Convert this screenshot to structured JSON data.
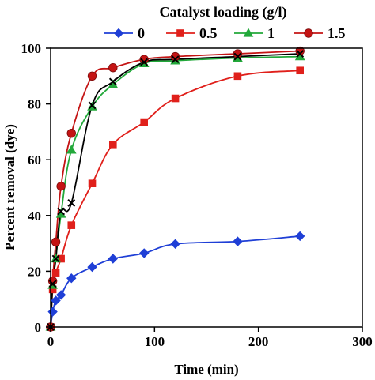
{
  "chart_data": {
    "type": "line",
    "xlabel": "Time (min)",
    "ylabel": "Percent removal (dye)",
    "xlim": [
      0,
      300
    ],
    "ylim": [
      0,
      100
    ],
    "xticks": [
      0,
      100,
      200,
      300
    ],
    "yticks": [
      0,
      20,
      40,
      60,
      80,
      100
    ],
    "grid": false,
    "legend": {
      "title": "Catalyst loading (g/l)",
      "placement": "top",
      "entries": [
        "0",
        "0.5",
        "1",
        "1.5"
      ]
    },
    "series": [
      {
        "name": "0",
        "marker": "diamond",
        "color": "#1f3fd6",
        "x": [
          0,
          2,
          5,
          10,
          20,
          40,
          60,
          90,
          120,
          180,
          240
        ],
        "y": [
          0,
          5.5,
          9.5,
          11.5,
          17.5,
          21.5,
          24.5,
          26.5,
          29.8,
          30.7,
          32.6
        ]
      },
      {
        "name": "0.5",
        "marker": "square",
        "color": "#e0201b",
        "x": [
          0,
          2,
          5,
          10,
          20,
          40,
          60,
          90,
          120,
          180,
          240
        ],
        "y": [
          0,
          13.5,
          19.5,
          24.5,
          36.5,
          51.5,
          65.5,
          73.5,
          82,
          90,
          92
        ]
      },
      {
        "name": "1",
        "marker": "triangle",
        "color": "#22a83a",
        "x": [
          0,
          2,
          5,
          10,
          20,
          40,
          60,
          90,
          120,
          180,
          240
        ],
        "y": [
          0,
          15,
          24.5,
          40.5,
          63.5,
          79,
          87,
          94.5,
          95.5,
          96.5,
          97
        ]
      },
      {
        "name": "1.5",
        "marker": "circle",
        "color": "#c41414",
        "x": [
          0,
          2,
          5,
          10,
          20,
          40,
          60,
          90,
          120,
          180,
          240
        ],
        "y": [
          0,
          16.5,
          30.5,
          50.5,
          69.5,
          90,
          93,
          96,
          97,
          98,
          99
        ]
      },
      {
        "marker": "x",
        "color": "#000000",
        "x": [
          0,
          2,
          5,
          10,
          20,
          40,
          60,
          90,
          120,
          180,
          240
        ],
        "y": [
          0,
          15.5,
          24.5,
          41.5,
          44.5,
          79.5,
          88,
          95,
          96,
          97,
          98
        ]
      }
    ]
  }
}
